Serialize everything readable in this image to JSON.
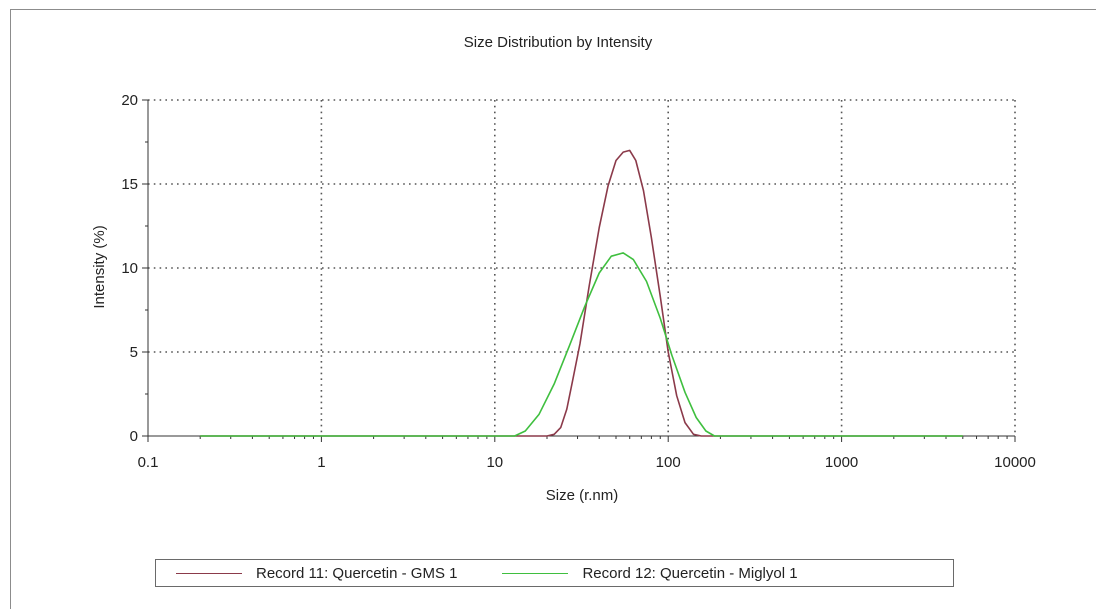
{
  "chart_data": {
    "type": "line",
    "title": "Size Distribution by Intensity",
    "xlabel": "Size (r.nm)",
    "ylabel": "Intensity (%)",
    "x_scale": "log",
    "xlim": [
      0.1,
      10000
    ],
    "ylim": [
      0,
      20
    ],
    "x_ticks": [
      0.1,
      1,
      10,
      100,
      1000,
      10000
    ],
    "x_tick_labels": [
      "0.1",
      "1",
      "10",
      "100",
      "1000",
      "10000"
    ],
    "y_ticks": [
      0,
      5,
      10,
      15,
      20
    ],
    "y_tick_labels": [
      "0",
      "5",
      "10",
      "15",
      "20"
    ],
    "grid": true,
    "legend_position": "bottom",
    "series": [
      {
        "name": "Record 11: Quercetin - GMS 1",
        "color": "#8b3a4a",
        "points": [
          [
            0.2,
            0
          ],
          [
            20,
            0
          ],
          [
            22,
            0.1
          ],
          [
            24,
            0.5
          ],
          [
            26,
            1.6
          ],
          [
            28,
            3.2
          ],
          [
            31,
            5.5
          ],
          [
            35,
            8.9
          ],
          [
            40,
            12.4
          ],
          [
            45,
            14.9
          ],
          [
            50,
            16.4
          ],
          [
            55,
            16.9
          ],
          [
            60,
            17.0
          ],
          [
            65,
            16.4
          ],
          [
            72,
            14.6
          ],
          [
            80,
            11.8
          ],
          [
            90,
            8.3
          ],
          [
            100,
            5.0
          ],
          [
            112,
            2.4
          ],
          [
            125,
            0.8
          ],
          [
            140,
            0.1
          ],
          [
            155,
            0
          ],
          [
            5000,
            0
          ]
        ]
      },
      {
        "name": "Record 12: Quercetin - Miglyol 1",
        "color": "#3fbf3f",
        "points": [
          [
            0.2,
            0
          ],
          [
            13,
            0
          ],
          [
            15,
            0.3
          ],
          [
            18,
            1.3
          ],
          [
            22,
            3.1
          ],
          [
            27,
            5.4
          ],
          [
            33,
            7.7
          ],
          [
            40,
            9.7
          ],
          [
            47,
            10.7
          ],
          [
            55,
            10.9
          ],
          [
            63,
            10.5
          ],
          [
            75,
            9.2
          ],
          [
            90,
            7.0
          ],
          [
            105,
            4.8
          ],
          [
            125,
            2.6
          ],
          [
            145,
            1.1
          ],
          [
            165,
            0.3
          ],
          [
            185,
            0
          ],
          [
            5000,
            0
          ]
        ]
      }
    ]
  }
}
